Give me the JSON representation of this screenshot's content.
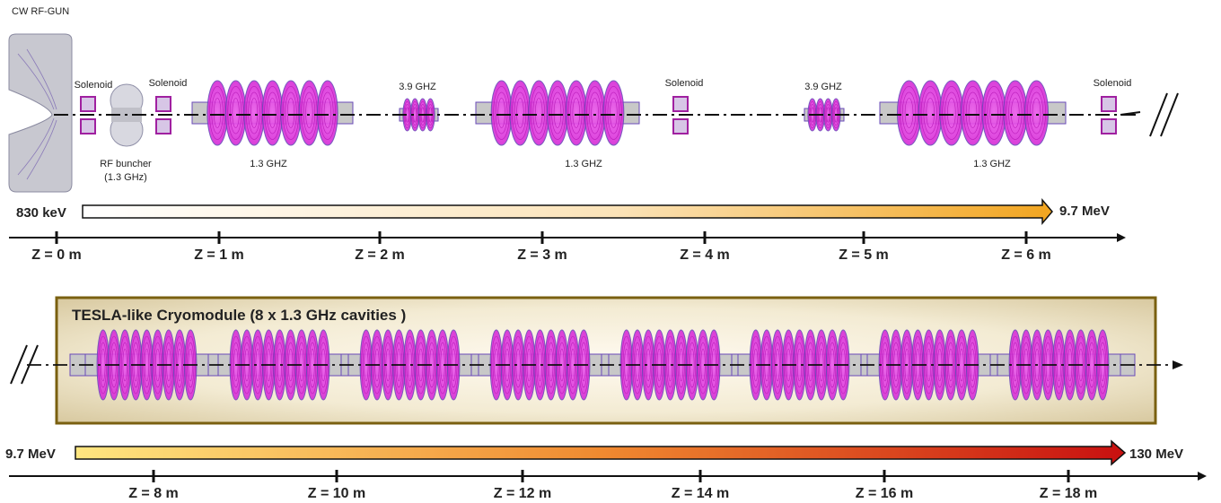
{
  "title_rf_gun": "CW RF-GUN",
  "solenoid_label": "Solenoid",
  "buncher_label_line1": "RF buncher",
  "buncher_label_line2": "(1.3 GHz)",
  "cavity_label_13": "1.3 GHZ",
  "cavity_label_39": "3.9 GHZ",
  "energy_top": {
    "start": "830 keV",
    "end": "9.7 MeV"
  },
  "energy_bottom": {
    "start": "9.7 MeV",
    "end": "130 MeV"
  },
  "cryomodule_label": "TESLA-like Cryomodule (8 x 1.3 GHz cavities )",
  "z_top": [
    "Z = 0 m",
    "Z = 1 m",
    "Z = 2 m",
    "Z = 3 m",
    "Z = 4 m",
    "Z = 5 m",
    "Z = 6 m"
  ],
  "z_bottom": [
    "Z = 8 m",
    "Z = 10 m",
    "Z = 12 m",
    "Z = 14 m",
    "Z = 16 m",
    "Z = 18 m"
  ],
  "colors": {
    "cavity": "#e040e0",
    "cavity_edge": "#6a4ab8",
    "pipe": "#c8c8c8",
    "cryo_border": "#7a6010",
    "cryo_fill": "#efe6cc",
    "arrow_top_end": "#f0a020",
    "arrow_bottom_start": "#ffe070",
    "arrow_bottom_end": "#c81010"
  }
}
